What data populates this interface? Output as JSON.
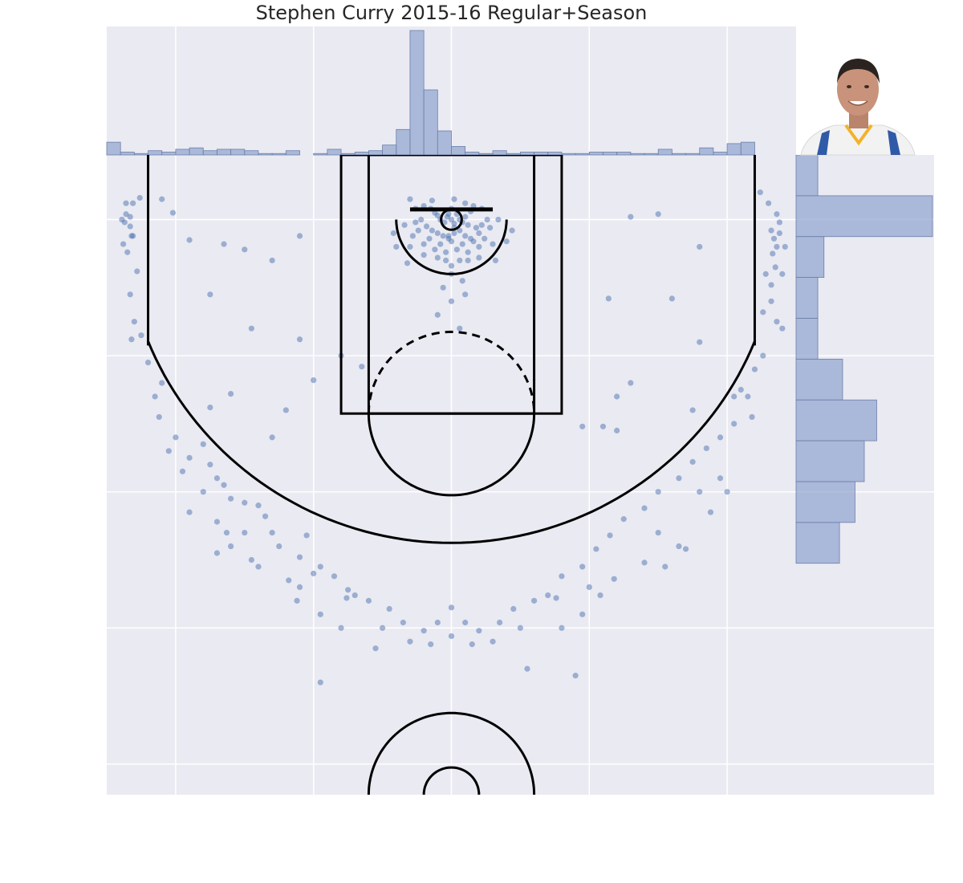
{
  "chart_data": {
    "type": "scatter",
    "subtype": "shot-chart-with-marginal-histograms",
    "title": "Stephen Curry 2015-16 Regular+Season",
    "xlabel": "",
    "ylabel": "",
    "xlim": [
      -250,
      250
    ],
    "ylim": [
      422.5,
      -47.5
    ],
    "grid": true,
    "background": "#EAEAF2",
    "grid_color": "#FFFFFF",
    "point_color": "#4C72B0",
    "hist_color": "#8FA4CE",
    "court_line_color": "#000000",
    "image": "player-headshot",
    "series": [
      {
        "points": [
          [
            -30,
            -15
          ],
          [
            -20,
            -10
          ],
          [
            -15,
            -8
          ],
          [
            -12,
            -5
          ],
          [
            -10,
            -3
          ],
          [
            -8,
            0
          ],
          [
            -5,
            2
          ],
          [
            -3,
            -2
          ],
          [
            0,
            0
          ],
          [
            2,
            3
          ],
          [
            4,
            -4
          ],
          [
            6,
            0
          ],
          [
            8,
            2
          ],
          [
            10,
            -2
          ],
          [
            12,
            4
          ],
          [
            14,
            -6
          ],
          [
            -18,
            5
          ],
          [
            -14,
            8
          ],
          [
            -10,
            10
          ],
          [
            -6,
            12
          ],
          [
            -2,
            14
          ],
          [
            2,
            10
          ],
          [
            6,
            8
          ],
          [
            10,
            12
          ],
          [
            14,
            14
          ],
          [
            18,
            6
          ],
          [
            22,
            4
          ],
          [
            26,
            0
          ],
          [
            -22,
            0
          ],
          [
            -26,
            2
          ],
          [
            -24,
            8
          ],
          [
            -16,
            14
          ],
          [
            -8,
            18
          ],
          [
            0,
            16
          ],
          [
            8,
            18
          ],
          [
            16,
            16
          ],
          [
            20,
            10
          ],
          [
            24,
            14
          ],
          [
            28,
            6
          ],
          [
            -28,
            12
          ],
          [
            -12,
            22
          ],
          [
            -4,
            24
          ],
          [
            4,
            22
          ],
          [
            12,
            24
          ],
          [
            20,
            20
          ],
          [
            -20,
            18
          ],
          [
            -2,
            -4
          ],
          [
            0,
            -8
          ],
          [
            2,
            6
          ],
          [
            -4,
            30
          ],
          [
            0,
            34
          ],
          [
            6,
            30
          ],
          [
            -10,
            28
          ],
          [
            12,
            30
          ],
          [
            -20,
            26
          ],
          [
            20,
            28
          ],
          [
            -30,
            20
          ],
          [
            30,
            18
          ],
          [
            16,
            -10
          ],
          [
            -14,
            -14
          ],
          [
            22,
            -8
          ],
          [
            -26,
            -8
          ],
          [
            34,
            0
          ],
          [
            -34,
            4
          ],
          [
            0,
            40
          ],
          [
            8,
            45
          ],
          [
            -6,
            50
          ],
          [
            10,
            55
          ],
          [
            -32,
            32
          ],
          [
            32,
            30
          ],
          [
            0,
            60
          ],
          [
            6,
            80
          ],
          [
            -10,
            70
          ],
          [
            -40,
            20
          ],
          [
            40,
            16
          ],
          [
            -42,
            10
          ],
          [
            44,
            8
          ],
          [
            2,
            -15
          ],
          [
            -2,
            12
          ],
          [
            10,
            -12
          ],
          [
            -226,
            -16
          ],
          [
            -231,
            -12
          ],
          [
            -236,
            -4
          ],
          [
            -237,
            2
          ],
          [
            -233,
            5
          ],
          [
            -239,
            0
          ],
          [
            -231,
            12
          ],
          [
            -235,
            24
          ],
          [
            -238,
            18
          ],
          [
            -228,
            38
          ],
          [
            -233,
            55
          ],
          [
            -230,
            75
          ],
          [
            -232,
            88
          ],
          [
            -236,
            -12
          ],
          [
            -233,
            -2
          ],
          [
            -232,
            12
          ],
          [
            224,
            -20
          ],
          [
            230,
            -12
          ],
          [
            236,
            -4
          ],
          [
            238,
            2
          ],
          [
            232,
            8
          ],
          [
            234,
            14
          ],
          [
            236,
            20
          ],
          [
            233,
            25
          ],
          [
            235,
            35
          ],
          [
            228,
            40
          ],
          [
            232,
            60
          ],
          [
            236,
            75
          ],
          [
            240,
            80
          ],
          [
            232,
            48
          ],
          [
            238,
            10
          ],
          [
            242,
            20
          ],
          [
            -220,
            105
          ],
          [
            -215,
            130
          ],
          [
            -212,
            145
          ],
          [
            -200,
            160
          ],
          [
            -205,
            170
          ],
          [
            -190,
            175
          ],
          [
            -195,
            185
          ],
          [
            -180,
            165
          ],
          [
            -175,
            180
          ],
          [
            -170,
            190
          ],
          [
            -165,
            195
          ],
          [
            -160,
            205
          ],
          [
            -150,
            208
          ],
          [
            -140,
            210
          ],
          [
            -135,
            218
          ],
          [
            -130,
            230
          ],
          [
            -125,
            240
          ],
          [
            -110,
            248
          ],
          [
            -105,
            232
          ],
          [
            -95,
            255
          ],
          [
            -85,
            262
          ],
          [
            -75,
            272
          ],
          [
            -70,
            276
          ],
          [
            -60,
            280
          ],
          [
            -45,
            286
          ],
          [
            -35,
            296
          ],
          [
            -20,
            302
          ],
          [
            -10,
            296
          ],
          [
            0,
            306
          ],
          [
            10,
            296
          ],
          [
            20,
            302
          ],
          [
            35,
            296
          ],
          [
            45,
            286
          ],
          [
            60,
            280
          ],
          [
            70,
            276
          ],
          [
            80,
            262
          ],
          [
            95,
            255
          ],
          [
            105,
            242
          ],
          [
            115,
            232
          ],
          [
            125,
            220
          ],
          [
            140,
            212
          ],
          [
            150,
            200
          ],
          [
            165,
            190
          ],
          [
            175,
            178
          ],
          [
            185,
            168
          ],
          [
            195,
            160
          ],
          [
            205,
            150
          ],
          [
            215,
            130
          ],
          [
            220,
            110
          ],
          [
            226,
            100
          ],
          [
            218,
            145
          ],
          [
            -225,
            85
          ],
          [
            210,
            125
          ],
          [
            -210,
            120
          ],
          [
            -150,
            230
          ],
          [
            150,
            230
          ],
          [
            -100,
            260
          ],
          [
            100,
            270
          ],
          [
            -50,
            300
          ],
          [
            50,
            300
          ],
          [
            -30,
            310
          ],
          [
            30,
            310
          ],
          [
            -80,
            300
          ],
          [
            80,
            300
          ],
          [
            -180,
            200
          ],
          [
            180,
            200
          ],
          [
            -190,
            215
          ],
          [
            188,
            215
          ],
          [
            -130,
            160
          ],
          [
            120,
            155
          ],
          [
            -95,
            290
          ],
          [
            95,
            290
          ],
          [
            0,
            285
          ],
          [
            -15,
            312
          ],
          [
            15,
            312
          ],
          [
            -55,
            315
          ],
          [
            55,
            330
          ],
          [
            -95,
            340
          ],
          [
            90,
            335
          ],
          [
            -170,
            222
          ],
          [
            -163,
            230
          ],
          [
            165,
            240
          ],
          [
            -170,
            245
          ],
          [
            170,
            242
          ],
          [
            -160,
            240
          ],
          [
            -145,
            250
          ],
          [
            155,
            255
          ],
          [
            -118,
            265
          ],
          [
            118,
            264
          ],
          [
            -140,
            255
          ],
          [
            140,
            252
          ],
          [
            -110,
            270
          ],
          [
            -112,
            280
          ],
          [
            108,
            276
          ],
          [
            -76,
            278
          ],
          [
            76,
            278
          ],
          [
            -190,
            15
          ],
          [
            -175,
            55
          ],
          [
            -150,
            22
          ],
          [
            -130,
            30
          ],
          [
            -110,
            12
          ],
          [
            -80,
            100
          ],
          [
            -65,
            108
          ],
          [
            -145,
            80
          ],
          [
            -160,
            128
          ],
          [
            -175,
            138
          ],
          [
            -210,
            -15
          ],
          [
            -202,
            -5
          ],
          [
            -165,
            18
          ],
          [
            -110,
            88
          ],
          [
            -120,
            140
          ],
          [
            -100,
            118
          ],
          [
            130,
            120
          ],
          [
            160,
            58
          ],
          [
            180,
            20
          ],
          [
            150,
            -4
          ],
          [
            114,
            58
          ],
          [
            130,
            -2
          ],
          [
            95,
            152
          ],
          [
            120,
            130
          ],
          [
            205,
            130
          ],
          [
            240,
            40
          ],
          [
            226,
            68
          ],
          [
            180,
            90
          ],
          [
            195,
            190
          ],
          [
            200,
            200
          ],
          [
            175,
            140
          ],
          [
            110,
            152
          ]
        ]
      }
    ],
    "x_histogram": {
      "bin_edges": [
        -250,
        -240,
        -230,
        -220,
        -210,
        -200,
        -190,
        -180,
        -170,
        -160,
        -150,
        -140,
        -130,
        -120,
        -110,
        -100,
        -90,
        -80,
        -70,
        -60,
        -50,
        -40,
        -30,
        -20,
        -10,
        0,
        10,
        20,
        30,
        40,
        50,
        60,
        70,
        80,
        90,
        100,
        110,
        120,
        130,
        140,
        150,
        160,
        170,
        180,
        190,
        200,
        210,
        220,
        230,
        240,
        250
      ],
      "counts": [
        9,
        2,
        1,
        3,
        2,
        4,
        5,
        3,
        4,
        4,
        3,
        1,
        1,
        3,
        0,
        1,
        4,
        1,
        2,
        3,
        7,
        18,
        88,
        46,
        17,
        6,
        2,
        1,
        3,
        1,
        2,
        2,
        2,
        1,
        1,
        2,
        2,
        2,
        1,
        1,
        4,
        1,
        1,
        5,
        2,
        8,
        9,
        0,
        0,
        0
      ]
    },
    "y_histogram": {
      "bin_edges": [
        -47.5,
        -17.5,
        12.5,
        42.5,
        72.5,
        102.5,
        132.5,
        162.5,
        192.5,
        222.5,
        252.5,
        282.5,
        312.5,
        342.5,
        372.5,
        402.5,
        422.5
      ],
      "counts": [
        7,
        44,
        9,
        7,
        7,
        15,
        26,
        22,
        19,
        14,
        0,
        0,
        0,
        0,
        0,
        0
      ]
    }
  }
}
